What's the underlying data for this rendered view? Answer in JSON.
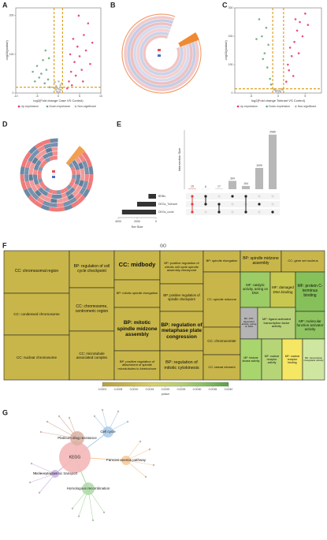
{
  "letters": [
    "A",
    "B",
    "C",
    "D",
    "E",
    "F",
    "G"
  ],
  "volcano_a": {
    "xlabel": "log2(Fold change Case VS Control)",
    "ylabel": "-log10(pvalue)",
    "legend": [
      "Up expression",
      "Down expression",
      "Non-significant"
    ],
    "xlim": [
      -10,
      10
    ],
    "xticks": [
      -10,
      -5,
      0,
      5,
      10
    ],
    "ylim": [
      0,
      220
    ],
    "yticks": [
      0,
      100,
      200
    ],
    "vlines": [
      -1,
      1
    ],
    "hline": 15,
    "up": [
      [
        2.1,
        12
      ],
      [
        2.5,
        30
      ],
      [
        3,
        55
      ],
      [
        3.2,
        20
      ],
      [
        3.8,
        80
      ],
      [
        4.1,
        45
      ],
      [
        4.5,
        120
      ],
      [
        5,
        95
      ],
      [
        5.5,
        60
      ],
      [
        6,
        150
      ],
      [
        6.5,
        110
      ],
      [
        7,
        180
      ],
      [
        7.5,
        75
      ],
      [
        8,
        130
      ],
      [
        2.8,
        100
      ],
      [
        4.8,
        200
      ],
      [
        5.8,
        30
      ],
      [
        3.5,
        140
      ]
    ],
    "down": [
      [
        -2,
        15
      ],
      [
        -2.4,
        35
      ],
      [
        -2.8,
        60
      ],
      [
        -3.2,
        25
      ],
      [
        -3.6,
        85
      ],
      [
        -4,
        50
      ],
      [
        -4.5,
        40
      ],
      [
        -5,
        70
      ],
      [
        -3,
        110
      ],
      [
        -2.2,
        90
      ],
      [
        -5.5,
        30
      ],
      [
        -6,
        55
      ]
    ],
    "ns": [
      [
        0,
        0.5
      ],
      [
        0.3,
        3
      ],
      [
        -0.3,
        4
      ],
      [
        0.6,
        8
      ],
      [
        -0.6,
        9
      ],
      [
        0.9,
        14
      ],
      [
        -0.9,
        13
      ],
      [
        0.2,
        10
      ],
      [
        -0.2,
        12
      ],
      [
        0.5,
        20
      ],
      [
        -0.5,
        18
      ],
      [
        0.8,
        25
      ],
      [
        -0.8,
        28
      ],
      [
        0.1,
        30
      ]
    ]
  },
  "volcano_c": {
    "xlabel": "log2(Fold change Tolerant VS Control)",
    "ylabel": "-log10(pvalue)",
    "legend": [
      "Up expression",
      "Down expression",
      "Non-significant"
    ],
    "xlim": [
      -8,
      8
    ],
    "xticks": [
      -5,
      0,
      5
    ],
    "ylim": [
      0,
      300
    ],
    "yticks": [
      0,
      100,
      200,
      300
    ],
    "vlines": [
      -1,
      1
    ],
    "hline": 15,
    "up": [
      [
        1.5,
        40
      ],
      [
        2,
        80
      ],
      [
        2.5,
        130
      ],
      [
        3,
        180
      ],
      [
        3.5,
        220
      ],
      [
        4,
        250
      ],
      [
        2.2,
        160
      ],
      [
        3.2,
        260
      ],
      [
        4.5,
        200
      ],
      [
        5,
        280
      ],
      [
        1.8,
        100
      ],
      [
        2.8,
        60
      ],
      [
        3.8,
        140
      ],
      [
        5.5,
        240
      ]
    ],
    "down": [
      [
        -1.5,
        50
      ],
      [
        -2,
        90
      ],
      [
        -2.5,
        140
      ],
      [
        -3,
        200
      ],
      [
        -2.2,
        230
      ],
      [
        -1.8,
        170
      ],
      [
        -3.5,
        260
      ],
      [
        -2.8,
        120
      ],
      [
        -4,
        190
      ],
      [
        -1.3,
        30
      ]
    ],
    "ns": [
      [
        0,
        1
      ],
      [
        0.4,
        5
      ],
      [
        -0.4,
        6
      ],
      [
        0.8,
        12
      ],
      [
        -0.8,
        13
      ],
      [
        0.2,
        8
      ],
      [
        -0.2,
        9
      ],
      [
        0.6,
        14
      ],
      [
        -0.6,
        11
      ]
    ]
  },
  "upset": {
    "ylabel": "Intersection Size",
    "xlabel": "Set Size",
    "values": [
      15,
      6,
      17,
      394,
      154,
      1009,
      2585
    ],
    "ylim": [
      0,
      2800
    ],
    "sets": [
      "BRBs",
      "DEGs_Tolerant",
      "DEGs_covid"
    ],
    "set_sizes": [
      800,
      2000,
      3600
    ],
    "set_xlim": [
      0,
      4000
    ],
    "set_xticks": [
      4000,
      2000,
      0
    ],
    "membership": [
      [
        1,
        1,
        1
      ],
      [
        1,
        1,
        0
      ],
      [
        0,
        1,
        1
      ],
      [
        1,
        0,
        0
      ],
      [
        1,
        0,
        1
      ],
      [
        0,
        1,
        0
      ],
      [
        0,
        0,
        1
      ]
    ]
  },
  "go": {
    "title": "GO",
    "boxes": [
      {
        "label": "CC: chromosomal region",
        "color": "#c8b64a"
      },
      {
        "label": "CC: condensed chromosome",
        "color": "#c8b64a"
      },
      {
        "label": "CC: nuclear chromosome",
        "color": "#c8b64a"
      },
      {
        "label": "BP: regulation of cell cycle checkpoint",
        "color": "#c8b64a"
      },
      {
        "label": "CC: chromosome, centromeric region",
        "color": "#c8b64a"
      },
      {
        "label": "CC: microtubule associated complex",
        "color": "#c8b64a"
      },
      {
        "label": "CC: midbody",
        "color": "#c8b64a"
      },
      {
        "label": "BP: mitotic spindle elongation",
        "color": "#c8b64a"
      },
      {
        "label": "BP: mitotic spindle midzone assembly",
        "color": "#c8b64a"
      },
      {
        "label": "BP: positive regulation of attachment of spindle microtubules to kinetochore",
        "color": "#c8b64a"
      },
      {
        "label": "BP: positive regulation of mitotic cell cycle spindle assembly checkpoint",
        "color": "#c8b64a"
      },
      {
        "label": "BP: positive regulation of spindle checkpoint",
        "color": "#c8b64a"
      },
      {
        "label": "BP: regulation of metaphase plate congression",
        "color": "#c8b64a"
      },
      {
        "label": "BP: regulation of mitotic cytokinesis",
        "color": "#c8b64a"
      },
      {
        "label": "BP: spindle elongation",
        "color": "#c8b64a"
      },
      {
        "label": "BP: spindle midzone assembly",
        "color": "#c8b64a"
      },
      {
        "label": "CC: gene set nucleus",
        "color": "#c8b64a"
      },
      {
        "label": "CC: spindle midzone",
        "color": "#c8b64a"
      },
      {
        "label": "MF: catalytic activity, acting on DNA",
        "color": "#9ccc65"
      },
      {
        "label": "MF: damaged DNA binding",
        "color": "#c8c850"
      },
      {
        "label": "MF: protein C-terminus binding",
        "color": "#86c05a"
      },
      {
        "label": "CC: chromocenter",
        "color": "#c8b64a"
      },
      {
        "label": "MF: ATP-dependent activity, acting on DNA",
        "color": "#b4b4b4"
      },
      {
        "label": "MF: ligand-activated transcription factor activity",
        "color": "#b9d27a"
      },
      {
        "label": "MF: molecular function activator activity",
        "color": "#8fc460"
      },
      {
        "label": "CC: lateral element",
        "color": "#c8b64a"
      },
      {
        "label": "MF: histone kinase activity",
        "color": "#a9d56e"
      },
      {
        "label": "MF: nuclear receptor activity",
        "color": "#b5d577"
      },
      {
        "label": "MF: nuclear receptor binding",
        "color": "#f5e663"
      },
      {
        "label": "MF: transcription coregulator activity",
        "color": "#cfe6a0"
      }
    ],
    "colorbar": {
      "title": "pvalue",
      "ticks": [
        "0.0001",
        "0.0005",
        "0.0010",
        "0.0015",
        "0.0020",
        "0.0025",
        "0.0030",
        "0.0035",
        "0.0040"
      ]
    }
  },
  "kegg": {
    "center": "KEGG",
    "nodes": [
      {
        "label": "Platinum drug resistance",
        "color": "#9a5a48"
      },
      {
        "label": "Cell cycle",
        "color": "#3a6fb0"
      },
      {
        "label": "Fanconi anemia pathway",
        "color": "#e08a2a"
      },
      {
        "label": "Nucleocytoplasmic transport",
        "color": "#8a5ab8"
      },
      {
        "label": "Homologous recombination",
        "color": "#3a8a3a"
      }
    ]
  }
}
